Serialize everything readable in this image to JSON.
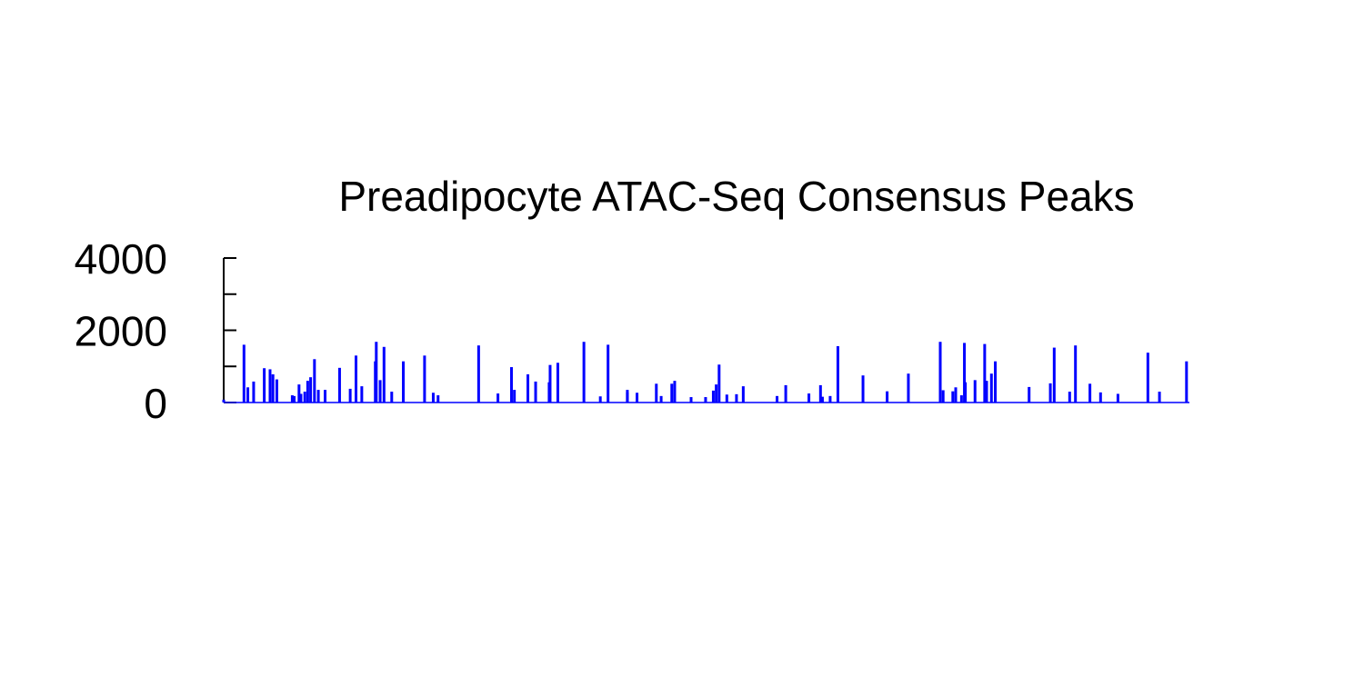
{
  "chart_data": {
    "type": "bar",
    "title": "Preadipocyte ATAC-Seq Consensus Peaks",
    "xlabel": "",
    "ylabel": "",
    "ylim": [
      0,
      4000
    ],
    "yticks": [
      0,
      1000,
      2000,
      3000,
      4000
    ],
    "ytick_labels": [
      "0",
      "2000",
      "4000"
    ],
    "xlim": [
      0,
      1000
    ],
    "grid": false,
    "legend": "none",
    "bar_color": "#0000ff",
    "axis_color": "#000000",
    "x": [
      0,
      21,
      25,
      31,
      42,
      48,
      51,
      55,
      71,
      73,
      78,
      80,
      84,
      87,
      90,
      94,
      98,
      105,
      120,
      131,
      137,
      143,
      157,
      158,
      162,
      166,
      174,
      186,
      208,
      217,
      222,
      264,
      284,
      298,
      301,
      315,
      323,
      337,
      338,
      346,
      373,
      390,
      398,
      418,
      418,
      428,
      448,
      453,
      464,
      467,
      484,
      499,
      507,
      510,
      513,
      521,
      531,
      538,
      573,
      582,
      606,
      618,
      620,
      628,
      636,
      662,
      687,
      709,
      742,
      745,
      755,
      758,
      764,
      767,
      768,
      778,
      788,
      790,
      795,
      799,
      799,
      834,
      856,
      860,
      876,
      882,
      897,
      908,
      926,
      957,
      969,
      997
    ],
    "values": [
      80,
      1600,
      420,
      580,
      950,
      920,
      780,
      640,
      200,
      180,
      500,
      240,
      300,
      600,
      700,
      1200,
      350,
      350,
      960,
      380,
      1300,
      450,
      1140,
      1680,
      620,
      1540,
      300,
      1140,
      1300,
      270,
      200,
      1580,
      250,
      980,
      350,
      780,
      580,
      560,
      1040,
      1100,
      1680,
      170,
      1600,
      350,
      280,
      270,
      520,
      180,
      520,
      600,
      150,
      150,
      330,
      500,
      1050,
      220,
      230,
      450,
      180,
      480,
      250,
      480,
      160,
      180,
      1560,
      750,
      310,
      800,
      1680,
      340,
      310,
      420,
      200,
      1650,
      560,
      620,
      1620,
      600,
      800,
      1140,
      140,
      430,
      530,
      1520,
      300,
      1580,
      520,
      280,
      240,
      1380,
      300,
      1140
    ]
  }
}
